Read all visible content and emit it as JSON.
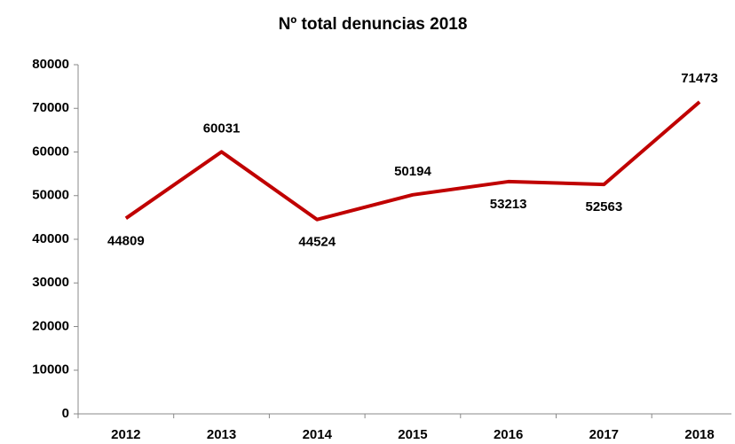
{
  "chart_data": {
    "type": "line",
    "title": "Nº total denuncias 2018",
    "categories": [
      "2012",
      "2013",
      "2014",
      "2015",
      "2016",
      "2017",
      "2018"
    ],
    "series": [
      {
        "name": "Nº total denuncias",
        "color": "#c00000",
        "values": [
          44809,
          60031,
          44524,
          50194,
          53213,
          52563,
          71473
        ]
      }
    ],
    "ylim": [
      0,
      80000
    ],
    "yticks": [
      0,
      10000,
      20000,
      30000,
      40000,
      50000,
      60000,
      70000,
      80000
    ],
    "grid": false
  }
}
